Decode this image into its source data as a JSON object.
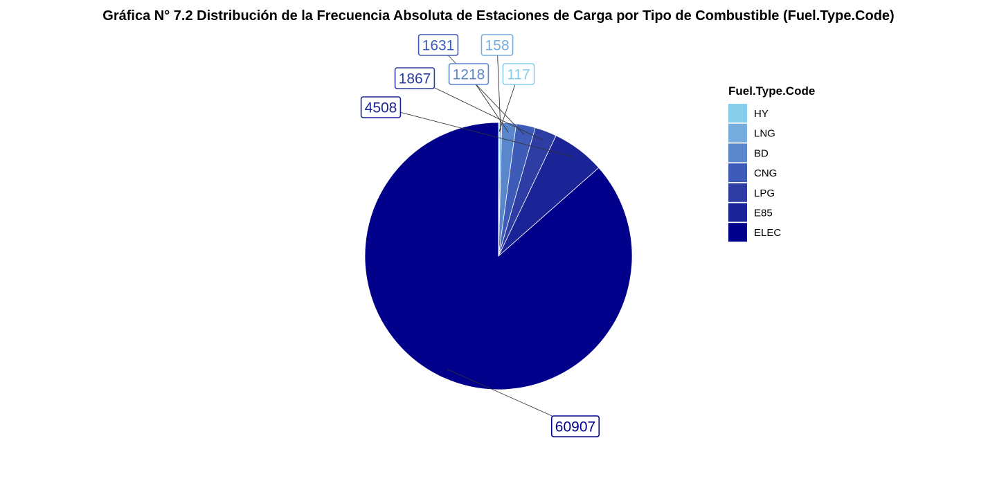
{
  "chart_data": {
    "type": "pie",
    "title": "Gráfica N° 7.2 Distribución de la Frecuencia Absoluta de Estaciones de Carga por Tipo de Combustible (Fuel.Type.Code)",
    "legend_title": "Fuel.Type.Code",
    "legend_position": "right",
    "categories": [
      "ELEC",
      "E85",
      "LPG",
      "CNG",
      "BD",
      "LNG",
      "HY"
    ],
    "values": [
      60907,
      4508,
      1867,
      1631,
      1218,
      158,
      117
    ],
    "colors": {
      "ELEC": "#00008B",
      "E85": "#1A2496",
      "LPG": "#2D3DA3",
      "CNG": "#3F5BB8",
      "BD": "#5A87CC",
      "LNG": "#77ACDE",
      "HY": "#87CEEB"
    },
    "legend_order": [
      "HY",
      "LNG",
      "BD",
      "CNG",
      "LPG",
      "E85",
      "ELEC"
    ]
  }
}
